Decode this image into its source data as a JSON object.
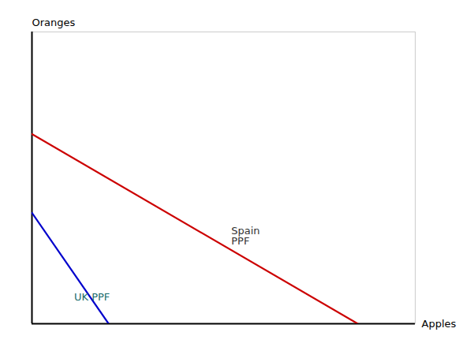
{
  "chart_data": {
    "type": "line",
    "xlabel": "Apples",
    "ylabel": "Oranges",
    "xlim": [
      0,
      10
    ],
    "ylim": [
      0,
      10
    ],
    "tick_labels": false,
    "series": [
      {
        "color": "#cc0000",
        "x": [
          0,
          8.5
        ],
        "values": [
          6.5,
          0
        ]
      },
      {
        "color": "#0000cc",
        "x": [
          0,
          2.0
        ],
        "values": [
          3.8,
          0
        ]
      }
    ],
    "annotations": [
      {
        "text": "Spain\nPPF",
        "x": 5.2,
        "y": 3.0,
        "color": "#333333"
      },
      {
        "text": "UK PPF",
        "x": 1.1,
        "y": 0.9,
        "color": "#1a6b6b"
      }
    ]
  }
}
